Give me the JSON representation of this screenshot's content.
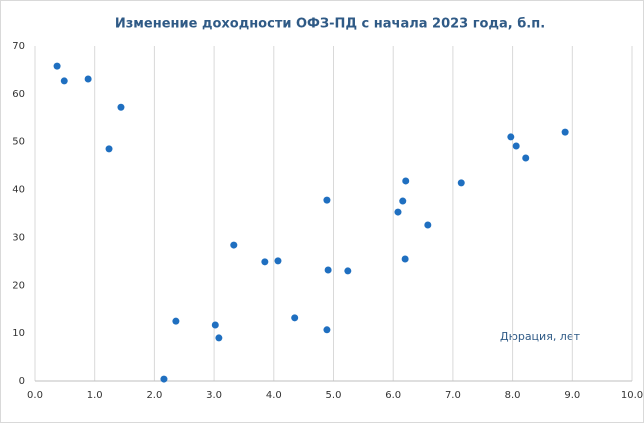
{
  "chart_data": {
    "type": "scatter",
    "title": "Изменение доходности ОФЗ-ПД с начала 2023 года, б.п.",
    "xlabel": "Дюрация, лет",
    "color": "#1f6fc0",
    "grid": true,
    "x": [
      0.37,
      0.49,
      0.89,
      1.44,
      1.24,
      2.16,
      2.36,
      3.02,
      3.08,
      3.33,
      3.85,
      4.07,
      4.35,
      4.89,
      4.91,
      4.89,
      5.24,
      6.08,
      6.16,
      6.21,
      6.2,
      6.58,
      7.14,
      7.97,
      8.06,
      8.22,
      8.88
    ],
    "values": [
      65.8,
      62.7,
      63.1,
      57.2,
      48.5,
      0.4,
      12.5,
      11.7,
      9.0,
      28.4,
      24.9,
      25.1,
      13.2,
      37.8,
      23.2,
      10.7,
      23.0,
      35.3,
      37.6,
      41.8,
      25.5,
      32.6,
      41.4,
      51.0,
      49.1,
      46.6,
      52.0
    ],
    "xlim": [
      0,
      10
    ],
    "ylim": [
      0,
      70
    ],
    "xticks": [
      {
        "value": 0,
        "label": "0.0"
      },
      {
        "value": 1,
        "label": "1.0"
      },
      {
        "value": 2,
        "label": "2.0"
      },
      {
        "value": 3,
        "label": "3.0"
      },
      {
        "value": 4,
        "label": "4.0"
      },
      {
        "value": 5,
        "label": "5.0"
      },
      {
        "value": 6,
        "label": "6.0"
      },
      {
        "value": 7,
        "label": "7.0"
      },
      {
        "value": 8,
        "label": "8.0"
      },
      {
        "value": 9,
        "label": "9.0"
      },
      {
        "value": 10,
        "label": "10.0"
      }
    ],
    "yticks": [
      0,
      10,
      20,
      30,
      40,
      50,
      60,
      70
    ]
  }
}
